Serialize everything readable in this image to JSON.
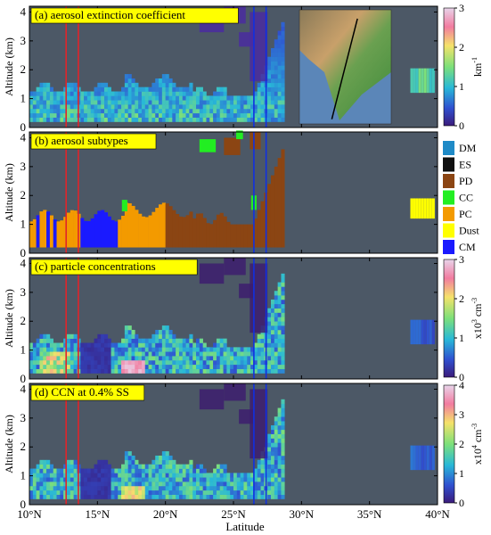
{
  "figure": {
    "xlabel": "Latitude",
    "ylabel": "Altitude (km)"
  },
  "chart_data": [
    {
      "type": "heatmap",
      "panel_title": "(a) aerosol extinction coefficient",
      "ylabel": "Altitude (km)",
      "xlim": [
        10,
        40
      ],
      "ylim": [
        0,
        4.2
      ],
      "colorbar": {
        "ticks": [
          "0",
          "1",
          "2",
          "3"
        ],
        "label": "km-1",
        "label_main": "km",
        "label_sup": "-1"
      },
      "has_inset_map": true,
      "inset_track": {
        "from": [
          14.0,
          8.3
        ],
        "to": [
          23.5,
          35.6
        ]
      }
    },
    {
      "type": "heatmap",
      "panel_title": "(b) aerosol subtypes",
      "ylabel": "Altitude (km)",
      "xlim": [
        10,
        40
      ],
      "ylim": [
        0,
        4.2
      ],
      "legend": [
        {
          "label": "DM",
          "color": "#1f8ac6"
        },
        {
          "label": "ES",
          "color": "#111111"
        },
        {
          "label": "PD",
          "color": "#8b4513"
        },
        {
          "label": "CC",
          "color": "#22ee22"
        },
        {
          "label": "PC",
          "color": "#f39a00"
        },
        {
          "label": "Dust",
          "color": "#ffff00"
        },
        {
          "label": "CM",
          "color": "#1a1aff"
        }
      ]
    },
    {
      "type": "heatmap",
      "panel_title": "(c) particle concentrations",
      "ylabel": "Altitude (km)",
      "xlim": [
        10,
        40
      ],
      "ylim": [
        0,
        4.2
      ],
      "colorbar": {
        "ticks": [
          "0",
          "1",
          "2",
          "3"
        ],
        "label": "x10^3 cm^-3",
        "label_main": "x10",
        "label_sup": "3",
        "label_tail": " cm",
        "label_sup2": "-3"
      }
    },
    {
      "type": "heatmap",
      "panel_title": "(d) CCN at 0.4% SS",
      "ylabel": "Altitude (km)",
      "xlim": [
        10,
        40
      ],
      "ylim": [
        0,
        4.2
      ],
      "colorbar": {
        "ticks": [
          "0",
          "1",
          "2",
          "3",
          "4"
        ],
        "label": "x10^4 cm^-3",
        "label_main": "x10",
        "label_sup": "4",
        "label_tail": " cm",
        "label_sup2": "-3"
      }
    }
  ],
  "axes": {
    "x_ticks": [
      "10°N",
      "15°N",
      "20°N",
      "25°N",
      "30°N",
      "35°N",
      "40°N"
    ],
    "x_tick_values": [
      10,
      15,
      20,
      25,
      30,
      35,
      40
    ],
    "y_ticks": [
      "0",
      "1",
      "2",
      "3",
      "4"
    ],
    "y_tick_values": [
      0,
      1,
      2,
      3,
      4
    ]
  },
  "markers": {
    "red_lines": [
      12.7,
      13.6
    ],
    "blue_lines": [
      26.5,
      27.4
    ],
    "red_color": "#e0242a",
    "blue_color": "#1030e0"
  },
  "colors": {
    "background": "#4c5866"
  }
}
